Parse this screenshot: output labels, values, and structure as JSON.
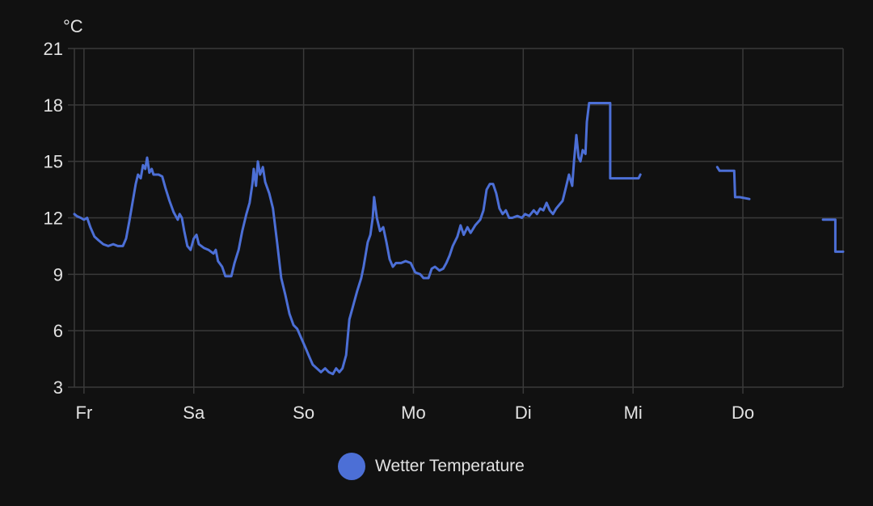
{
  "chart_data": {
    "type": "line",
    "ylabel": "°C",
    "ylim": [
      3,
      21
    ],
    "yticks": [
      3,
      6,
      9,
      12,
      15,
      18,
      21
    ],
    "x_unit": "hours since Fr 00:00",
    "xlim": [
      -2.1,
      165.9
    ],
    "xticks": [
      {
        "label": "Fr",
        "value": 0
      },
      {
        "label": "Sa",
        "value": 24
      },
      {
        "label": "So",
        "value": 48
      },
      {
        "label": "Mo",
        "value": 72
      },
      {
        "label": "Di",
        "value": 96
      },
      {
        "label": "Mi",
        "value": 120
      },
      {
        "label": "Do",
        "value": 144
      }
    ],
    "grid": true,
    "legend_position": "bottom-center",
    "series": [
      {
        "name": "Wetter Temperature",
        "color": "#4c6fd6",
        "segments": [
          [
            [
              -2.1,
              12.2
            ],
            [
              -1.6,
              12.1
            ],
            [
              -0.7,
              12.0
            ],
            [
              0,
              11.9
            ],
            [
              0.7,
              12.0
            ],
            [
              1.4,
              11.5
            ],
            [
              2.3,
              11.0
            ],
            [
              3.2,
              10.8
            ],
            [
              4.2,
              10.6
            ],
            [
              5.3,
              10.5
            ],
            [
              6.4,
              10.6
            ],
            [
              7.4,
              10.5
            ],
            [
              8.5,
              10.5
            ],
            [
              9.2,
              10.9
            ],
            [
              9.9,
              11.8
            ],
            [
              10.6,
              12.8
            ],
            [
              11.3,
              13.8
            ],
            [
              11.8,
              14.3
            ],
            [
              12.4,
              14.1
            ],
            [
              12.9,
              14.8
            ],
            [
              13.4,
              14.6
            ],
            [
              13.8,
              15.2
            ],
            [
              14.3,
              14.4
            ],
            [
              14.8,
              14.6
            ],
            [
              15.2,
              14.3
            ],
            [
              16.3,
              14.3
            ],
            [
              17.1,
              14.2
            ],
            [
              17.8,
              13.6
            ],
            [
              18.7,
              12.9
            ],
            [
              19.6,
              12.3
            ],
            [
              20.5,
              11.9
            ],
            [
              20.9,
              12.2
            ],
            [
              21.4,
              12.0
            ],
            [
              21.9,
              11.3
            ],
            [
              22.6,
              10.5
            ],
            [
              23.3,
              10.3
            ],
            [
              24.0,
              10.9
            ],
            [
              24.6,
              11.1
            ],
            [
              25.1,
              10.6
            ],
            [
              26.2,
              10.4
            ],
            [
              27.2,
              10.3
            ],
            [
              28.3,
              10.1
            ],
            [
              28.8,
              10.3
            ],
            [
              29.3,
              9.7
            ],
            [
              30.2,
              9.4
            ],
            [
              30.9,
              8.9
            ],
            [
              32.2,
              8.9
            ],
            [
              32.9,
              9.6
            ],
            [
              33.8,
              10.3
            ],
            [
              34.6,
              11.3
            ],
            [
              35.5,
              12.2
            ],
            [
              36.2,
              12.8
            ],
            [
              36.8,
              13.8
            ],
            [
              37.1,
              14.6
            ],
            [
              37.6,
              13.7
            ],
            [
              38.0,
              15.0
            ],
            [
              38.5,
              14.3
            ],
            [
              39.1,
              14.7
            ],
            [
              39.6,
              13.9
            ],
            [
              40.5,
              13.3
            ],
            [
              41.3,
              12.5
            ],
            [
              42.2,
              10.7
            ],
            [
              43.1,
              8.8
            ],
            [
              44.0,
              7.9
            ],
            [
              44.9,
              6.9
            ],
            [
              45.8,
              6.3
            ],
            [
              46.6,
              6.1
            ],
            [
              47.5,
              5.6
            ],
            [
              48.4,
              5.1
            ],
            [
              49.1,
              4.7
            ],
            [
              50.0,
              4.2
            ],
            [
              50.9,
              4.0
            ],
            [
              51.8,
              3.8
            ],
            [
              52.7,
              4.0
            ],
            [
              53.5,
              3.8
            ],
            [
              54.4,
              3.7
            ],
            [
              55.1,
              4.0
            ],
            [
              55.8,
              3.8
            ],
            [
              56.5,
              4.0
            ],
            [
              57.3,
              4.7
            ],
            [
              58.0,
              6.6
            ],
            [
              58.8,
              7.3
            ],
            [
              59.7,
              8.1
            ],
            [
              60.6,
              8.8
            ],
            [
              61.1,
              9.4
            ],
            [
              62.0,
              10.7
            ],
            [
              62.6,
              11.1
            ],
            [
              63.1,
              12.0
            ],
            [
              63.4,
              13.1
            ],
            [
              64.0,
              12.0
            ],
            [
              64.7,
              11.3
            ],
            [
              65.4,
              11.5
            ],
            [
              66.1,
              10.7
            ],
            [
              66.8,
              9.8
            ],
            [
              67.5,
              9.4
            ],
            [
              68.2,
              9.6
            ],
            [
              69.3,
              9.6
            ],
            [
              70.3,
              9.7
            ],
            [
              71.4,
              9.6
            ],
            [
              72.4,
              9.1
            ],
            [
              73.5,
              9.0
            ],
            [
              74.2,
              8.8
            ],
            [
              75.3,
              8.8
            ],
            [
              76.0,
              9.3
            ],
            [
              76.7,
              9.4
            ],
            [
              77.7,
              9.2
            ],
            [
              78.5,
              9.3
            ],
            [
              79.2,
              9.6
            ],
            [
              79.9,
              10.0
            ],
            [
              80.6,
              10.5
            ],
            [
              81.6,
              11.0
            ],
            [
              82.3,
              11.6
            ],
            [
              83.0,
              11.1
            ],
            [
              83.8,
              11.5
            ],
            [
              84.5,
              11.2
            ],
            [
              85.5,
              11.6
            ],
            [
              86.6,
              11.9
            ],
            [
              87.3,
              12.4
            ],
            [
              88.0,
              13.5
            ],
            [
              88.7,
              13.8
            ],
            [
              89.4,
              13.8
            ],
            [
              90.1,
              13.3
            ],
            [
              90.8,
              12.5
            ],
            [
              91.5,
              12.2
            ],
            [
              92.2,
              12.4
            ],
            [
              92.9,
              12.0
            ],
            [
              93.6,
              12.0
            ],
            [
              94.7,
              12.1
            ],
            [
              95.7,
              12.0
            ],
            [
              96.4,
              12.2
            ],
            [
              97.3,
              12.1
            ],
            [
              98.3,
              12.4
            ],
            [
              99.0,
              12.2
            ],
            [
              99.7,
              12.5
            ],
            [
              100.4,
              12.4
            ],
            [
              101.1,
              12.8
            ],
            [
              101.8,
              12.4
            ],
            [
              102.5,
              12.2
            ],
            [
              103.2,
              12.5
            ],
            [
              103.9,
              12.7
            ],
            [
              104.6,
              12.9
            ],
            [
              105.3,
              13.6
            ],
            [
              106.0,
              14.3
            ],
            [
              106.7,
              13.7
            ],
            [
              107.1,
              15.0
            ],
            [
              107.6,
              16.4
            ],
            [
              108.1,
              15.2
            ],
            [
              108.5,
              15.0
            ],
            [
              109.0,
              15.6
            ],
            [
              109.6,
              15.4
            ],
            [
              109.9,
              17.1
            ],
            [
              110.4,
              18.1
            ],
            [
              115.0,
              18.1
            ],
            [
              115.0,
              14.1
            ],
            [
              121.2,
              14.1
            ],
            [
              121.6,
              14.3
            ]
          ],
          [
            [
              138.4,
              14.7
            ],
            [
              138.9,
              14.5
            ],
            [
              142.1,
              14.5
            ],
            [
              142.3,
              13.1
            ],
            [
              143.3,
              13.1
            ],
            [
              145.4,
              13.0
            ]
          ],
          [
            [
              161.5,
              11.9
            ],
            [
              164.2,
              11.9
            ],
            [
              164.2,
              10.2
            ],
            [
              165.9,
              10.2
            ]
          ]
        ]
      }
    ]
  }
}
